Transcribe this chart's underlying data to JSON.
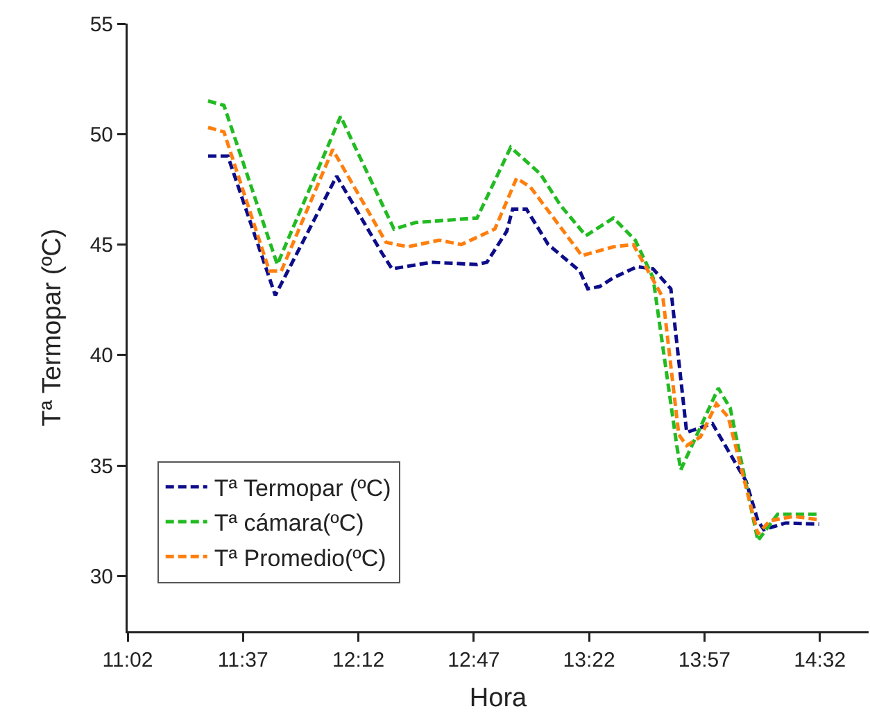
{
  "chart_data": {
    "type": "line",
    "xlabel": "Hora",
    "ylabel": "Tª Termopar (ºC)",
    "xlim": [
      11.0333,
      14.78
    ],
    "xticks": [
      {
        "value": 11.0333,
        "label": "11:02"
      },
      {
        "value": 11.6167,
        "label": "11:37"
      },
      {
        "value": 12.2,
        "label": "12:12"
      },
      {
        "value": 12.7833,
        "label": "12:47"
      },
      {
        "value": 13.3667,
        "label": "13:22"
      },
      {
        "value": 13.95,
        "label": "13:57"
      },
      {
        "value": 14.5333,
        "label": "14:32"
      }
    ],
    "ylim": [
      27.5,
      55
    ],
    "yticks": [
      30,
      35,
      40,
      45,
      50,
      55
    ],
    "grid": false,
    "legend": "bottom left",
    "line_style": "dashed",
    "marker": "none",
    "series": [
      {
        "name": "Tª Termopar (ºC)",
        "color": "#0d0d8a",
        "x": [
          11.44,
          11.54,
          11.78,
          12.09,
          12.32,
          12.37,
          12.57,
          12.8,
          12.85,
          12.95,
          12.98,
          13.05,
          13.16,
          13.32,
          13.36,
          13.42,
          13.49,
          13.61,
          13.69,
          13.78,
          13.86,
          13.99,
          14.16,
          14.22,
          14.25,
          14.36,
          14.53
        ],
        "values": [
          49.0,
          49.0,
          42.7,
          48.1,
          44.6,
          43.9,
          44.2,
          44.1,
          44.2,
          45.6,
          46.6,
          46.6,
          45.0,
          43.8,
          43.0,
          43.1,
          43.5,
          44.0,
          43.9,
          43.0,
          36.5,
          36.9,
          34.3,
          32.5,
          32.1,
          32.4,
          32.35
        ]
      },
      {
        "name": "Tª cámara(ºC)",
        "color": "#22bb22",
        "x": [
          11.44,
          11.52,
          11.79,
          12.11,
          12.38,
          12.49,
          12.8,
          12.97,
          13.12,
          13.22,
          13.35,
          13.49,
          13.6,
          13.69,
          13.81,
          13.83,
          14.02,
          14.08,
          14.22,
          14.32,
          14.53
        ],
        "values": [
          51.5,
          51.3,
          44.1,
          50.8,
          45.7,
          46.0,
          46.2,
          49.4,
          48.2,
          46.8,
          45.4,
          46.2,
          45.2,
          43.5,
          35.9,
          34.8,
          38.5,
          37.6,
          31.6,
          32.8,
          32.8
        ]
      },
      {
        "name": "Tª Promedio(ºC)",
        "color": "#ff7f0e",
        "x": [
          11.44,
          11.52,
          11.75,
          11.81,
          12.07,
          12.34,
          12.45,
          12.61,
          12.72,
          12.89,
          13.0,
          13.07,
          13.33,
          13.49,
          13.59,
          13.74,
          13.82,
          13.86,
          13.93,
          14.01,
          14.07,
          14.22,
          14.28,
          14.4,
          14.53
        ],
        "values": [
          50.3,
          50.1,
          43.8,
          43.8,
          49.3,
          45.1,
          44.9,
          45.2,
          45.0,
          45.7,
          48.0,
          47.6,
          44.5,
          44.9,
          45.0,
          42.6,
          36.4,
          35.9,
          36.3,
          37.8,
          37.2,
          31.9,
          32.5,
          32.7,
          32.55
        ]
      }
    ]
  }
}
